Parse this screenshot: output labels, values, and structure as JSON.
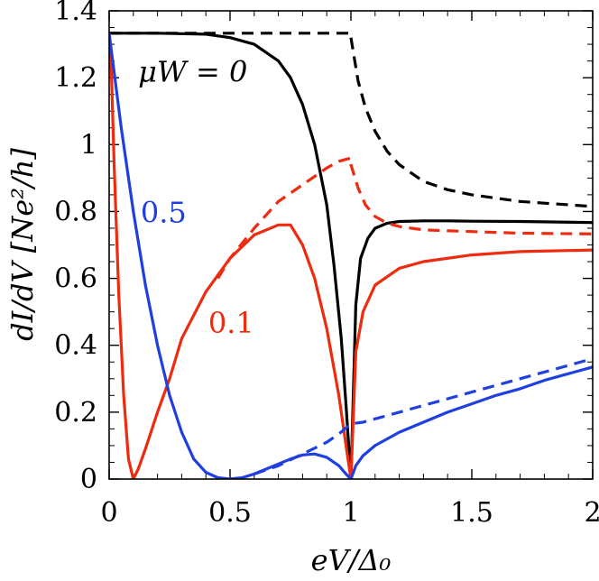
{
  "chart_data": {
    "type": "line",
    "title": "",
    "xlabel": "eV/Δ₀",
    "ylabel": "dI/dV [Ne²/h]",
    "xlim": [
      0,
      2
    ],
    "ylim": [
      0,
      1.4
    ],
    "x_ticks": [
      0,
      0.5,
      1,
      1.5,
      2
    ],
    "x_tick_labels": [
      "0",
      "0.5",
      "1",
      "1.5",
      "2"
    ],
    "y_ticks": [
      0,
      0.2,
      0.4,
      0.6,
      0.8,
      1,
      1.2,
      1.4
    ],
    "y_tick_labels": [
      "0",
      "0.2",
      "0.4",
      "0.6",
      "0.8",
      "1",
      "1.2",
      "1.4"
    ],
    "grid": false,
    "legend": "none",
    "annotations": [
      {
        "text": "μW = 0",
        "color": "#000000",
        "x": 0.12,
        "y": 1.22
      },
      {
        "text": "0.5",
        "color": "#1f3fe0",
        "x": 0.13,
        "y": 0.8
      },
      {
        "text": "0.1",
        "color": "#ee2a0f",
        "x": 0.41,
        "y": 0.47
      }
    ],
    "series": [
      {
        "color": "#000000",
        "style": "solid",
        "x": [
          0,
          0.2,
          0.4,
          0.5,
          0.6,
          0.7,
          0.75,
          0.8,
          0.85,
          0.9,
          0.93,
          0.96,
          0.98,
          1.0,
          1.02,
          1.04,
          1.07,
          1.1,
          1.15,
          1.2,
          1.3,
          1.4,
          1.5,
          1.7,
          2.0
        ],
        "y": [
          1.333,
          1.333,
          1.33,
          1.32,
          1.3,
          1.25,
          1.2,
          1.12,
          1.0,
          0.82,
          0.64,
          0.42,
          0.22,
          0.0,
          0.52,
          0.66,
          0.72,
          0.75,
          0.765,
          0.77,
          0.772,
          0.772,
          0.771,
          0.77,
          0.767
        ]
      },
      {
        "color": "#000000",
        "style": "dashed",
        "x": [
          0,
          0.5,
          0.9,
          1.0,
          1.0,
          1.03,
          1.06,
          1.1,
          1.15,
          1.2,
          1.3,
          1.4,
          1.5,
          1.6,
          1.7,
          1.8,
          1.9,
          2.0
        ],
        "y": [
          1.333,
          1.333,
          1.333,
          1.333,
          1.32,
          1.19,
          1.11,
          1.04,
          0.98,
          0.94,
          0.89,
          0.865,
          0.85,
          0.84,
          0.83,
          0.825,
          0.82,
          0.815
        ]
      },
      {
        "color": "#ee2a0f",
        "style": "solid",
        "x": [
          0,
          0.01,
          0.02,
          0.04,
          0.06,
          0.08,
          0.1,
          0.12,
          0.15,
          0.2,
          0.25,
          0.3,
          0.4,
          0.5,
          0.6,
          0.7,
          0.75,
          0.8,
          0.85,
          0.9,
          0.95,
          0.98,
          1.0,
          1.02,
          1.05,
          1.1,
          1.2,
          1.3,
          1.5,
          1.7,
          2.0
        ],
        "y": [
          1.333,
          1.2,
          0.95,
          0.55,
          0.25,
          0.06,
          0.0,
          0.03,
          0.09,
          0.2,
          0.3,
          0.42,
          0.56,
          0.66,
          0.73,
          0.76,
          0.76,
          0.7,
          0.6,
          0.45,
          0.25,
          0.1,
          0.0,
          0.38,
          0.5,
          0.58,
          0.63,
          0.65,
          0.67,
          0.68,
          0.685
        ]
      },
      {
        "color": "#ee2a0f",
        "style": "dashed",
        "x": [
          0.45,
          0.5,
          0.6,
          0.7,
          0.8,
          0.9,
          0.95,
          1.0,
          1.0,
          1.03,
          1.06,
          1.1,
          1.15,
          1.2,
          1.3,
          1.5,
          1.7,
          2.0
        ],
        "y": [
          0.6,
          0.66,
          0.75,
          0.83,
          0.88,
          0.93,
          0.95,
          0.96,
          0.94,
          0.87,
          0.82,
          0.785,
          0.765,
          0.755,
          0.745,
          0.74,
          0.735,
          0.733
        ]
      },
      {
        "color": "#1f3fe0",
        "style": "solid",
        "x": [
          0,
          0.05,
          0.1,
          0.15,
          0.2,
          0.25,
          0.3,
          0.35,
          0.4,
          0.45,
          0.5,
          0.55,
          0.6,
          0.65,
          0.7,
          0.75,
          0.8,
          0.85,
          0.9,
          0.95,
          0.98,
          1.0,
          1.02,
          1.05,
          1.1,
          1.2,
          1.3,
          1.4,
          1.5,
          1.6,
          1.7,
          1.8,
          1.9,
          2.0
        ],
        "y": [
          1.333,
          1.05,
          0.8,
          0.58,
          0.4,
          0.25,
          0.14,
          0.06,
          0.02,
          0.004,
          0.0,
          0.004,
          0.015,
          0.03,
          0.045,
          0.06,
          0.072,
          0.075,
          0.065,
          0.04,
          0.015,
          0.0,
          0.04,
          0.07,
          0.1,
          0.14,
          0.17,
          0.2,
          0.225,
          0.25,
          0.27,
          0.295,
          0.315,
          0.335
        ]
      },
      {
        "color": "#1f3fe0",
        "style": "dashed",
        "x": [
          0.6,
          0.7,
          0.8,
          0.9,
          0.95,
          1.0,
          1.05,
          1.1,
          1.2,
          1.3,
          1.4,
          1.5,
          1.6,
          1.7,
          1.8,
          1.9,
          2.0
        ],
        "y": [
          0.015,
          0.04,
          0.075,
          0.11,
          0.135,
          0.165,
          0.17,
          0.18,
          0.2,
          0.22,
          0.24,
          0.26,
          0.28,
          0.3,
          0.32,
          0.34,
          0.36
        ]
      }
    ]
  }
}
